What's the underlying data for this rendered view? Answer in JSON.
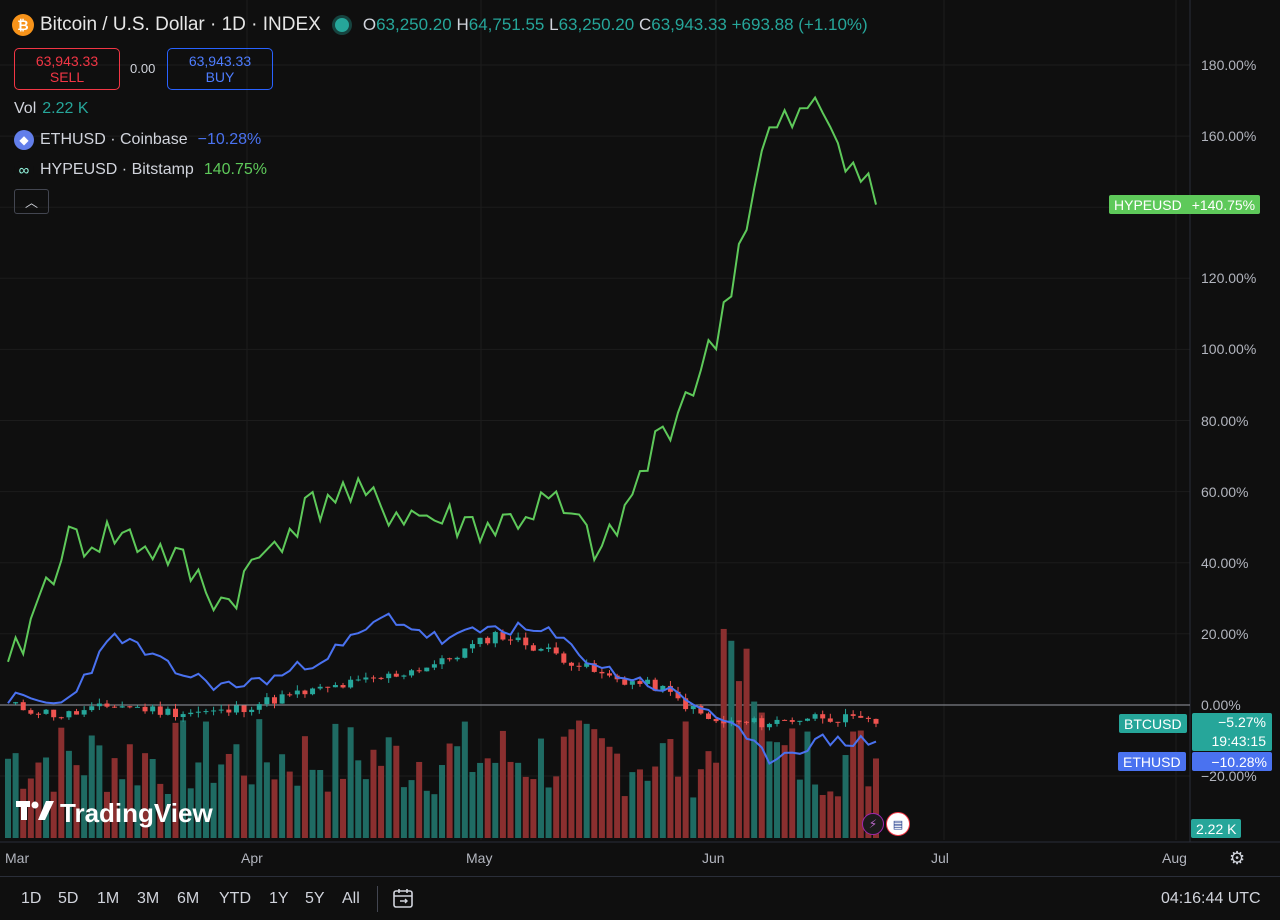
{
  "header": {
    "title": "Bitcoin / U.S. Dollar · 1D · INDEX",
    "btc_glyph": "₿",
    "o_key": "O",
    "o": "63,250.20",
    "h_key": "H",
    "h": "64,751.55",
    "l_key": "L",
    "l": "63,250.20",
    "c_key": "C",
    "c": "63,943.33",
    "change": "+693.88 (+1.10%)"
  },
  "trade": {
    "sell_price": "63,943.33",
    "sell_label": "SELL",
    "spread": "0.00",
    "buy_price": "63,943.33",
    "buy_label": "BUY"
  },
  "legend": {
    "vol_label": "Vol",
    "vol_value": "2.22 K",
    "eth_name": "ETHUSD · Coinbase",
    "eth_change": "−10.28%",
    "hype_name": "HYPEUSD · Bitstamp",
    "hype_change": "140.75%",
    "collapse_glyph": "︿"
  },
  "price_axis": {
    "labels": [
      "180.00%",
      "160.00%",
      "140.00%",
      "120.00%",
      "100.00%",
      "80.00%",
      "60.00%",
      "40.00%",
      "20.00%",
      "0.00%",
      "−20.00%"
    ]
  },
  "tags": {
    "hype_name": "HYPEUSD",
    "hype_val": "+140.75%",
    "btc_name": "BTCUSD",
    "btc_val": "−5.27%",
    "countdown": "19:43:15",
    "eth_name": "ETHUSD",
    "eth_val": "−10.28%",
    "vol": "2.22 K"
  },
  "time_axis": {
    "labels": [
      "Mar",
      "Apr",
      "May",
      "Jun",
      "Jul",
      "Aug"
    ]
  },
  "ranges": [
    "1D",
    "5D",
    "1M",
    "3M",
    "6M",
    "YTD",
    "1Y",
    "5Y",
    "All"
  ],
  "clock": "04:16:44 UTC",
  "logo_text": "TradingView",
  "colors": {
    "hype": "#5ec95a",
    "eth": "#4a72f0",
    "up": "#26a69a",
    "down": "#ef5350",
    "bg": "#0f0f0f"
  },
  "icons": [
    "bitcoin-icon",
    "ethereum-icon",
    "hyperliquid-icon",
    "chevron-up-icon",
    "calendar-icon",
    "gear-icon",
    "lightning-icon",
    "us-flag-icon"
  ],
  "chart_data": {
    "type": "line",
    "x": [
      "Mar 1",
      "Mar 8",
      "Mar 15",
      "Mar 22",
      "Mar 29",
      "Apr 5",
      "Apr 12",
      "Apr 19",
      "Apr 26",
      "May 3",
      "May 10",
      "May 17",
      "May 24",
      "May 31",
      "Jun 7",
      "Jun 14",
      "Jun 21"
    ],
    "series": [
      {
        "name": "HYPEUSD",
        "values": [
          8,
          45,
          48,
          42,
          28,
          48,
          60,
          55,
          52,
          50,
          57,
          42,
          75,
          100,
          160,
          168,
          140.75
        ]
      },
      {
        "name": "ETHUSD",
        "values": [
          2,
          0,
          20,
          10,
          5,
          8,
          15,
          25,
          18,
          22,
          20,
          10,
          5,
          -2,
          -15,
          -10,
          -10.28
        ]
      },
      {
        "name": "BTCUSD",
        "values": [
          0,
          -3,
          0,
          -2,
          -2,
          2,
          5,
          8,
          12,
          20,
          15,
          8,
          5,
          -5,
          -5,
          -3,
          -5.27
        ]
      }
    ],
    "ylabel": "",
    "ylim": [
      -25,
      185
    ],
    "grid": true
  }
}
